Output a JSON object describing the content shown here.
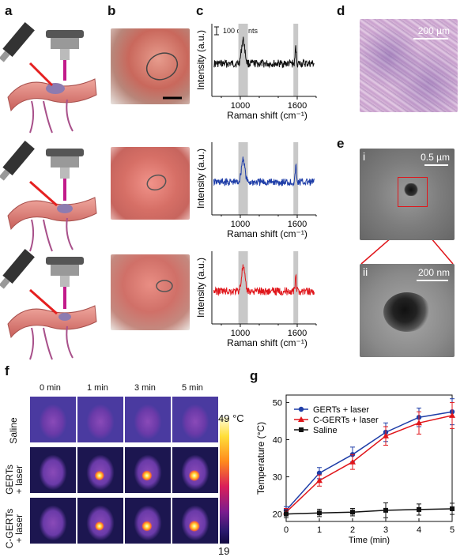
{
  "panels": {
    "a": "a",
    "b": "b",
    "c": "c",
    "d": "d",
    "e": "e",
    "f": "f",
    "g": "g"
  },
  "raman": {
    "scale_label": "100 counts",
    "ylabel": "Intensity (a.u.)",
    "xlabel": "Raman shift (cm⁻¹)",
    "ticks": [
      "1000",
      "1600"
    ],
    "colors": [
      "#111111",
      "#1f3ea8",
      "#e0161b"
    ]
  },
  "histology": {
    "scale_label": "200 µm"
  },
  "tem": {
    "i_label": "i",
    "i_scale": "0.5 µm",
    "ii_label": "ii",
    "ii_scale": "200 nm"
  },
  "thermal": {
    "times": [
      "0 min",
      "1 min",
      "3 min",
      "5 min"
    ],
    "rows": [
      {
        "line1": "Saline",
        "line2": ""
      },
      {
        "line1": "GERTs",
        "line2": "+ laser"
      },
      {
        "line1": "C-GERTs",
        "line2": "+ laser"
      }
    ],
    "scale_max": "49 °C",
    "scale_min": "19"
  },
  "chart_data": {
    "type": "line",
    "xlabel": "Time (min)",
    "ylabel": "Temperature (°C)",
    "xlim": [
      0,
      5
    ],
    "ylim": [
      18,
      52
    ],
    "x_ticks": [
      "0",
      "1",
      "2",
      "3",
      "4",
      "5"
    ],
    "y_ticks": [
      "20",
      "30",
      "40",
      "50"
    ],
    "legend_position": "top-left",
    "x": [
      0,
      1,
      2,
      3,
      4,
      5
    ],
    "series": [
      {
        "name": "GERTs + laser",
        "color": "#1f3ea8",
        "marker": "circle",
        "values": [
          21,
          31,
          36,
          42,
          46,
          47.5
        ],
        "errors": [
          1,
          1.5,
          2,
          2.5,
          2.5,
          3.5
        ]
      },
      {
        "name": "C-GERTs + laser",
        "color": "#e0161b",
        "marker": "triangle",
        "values": [
          20.5,
          29,
          34,
          41,
          44.5,
          46.5
        ],
        "errors": [
          1,
          1.5,
          2,
          2.5,
          3,
          3.5
        ]
      },
      {
        "name": "Saline",
        "color": "#111111",
        "marker": "square",
        "values": [
          20,
          20.3,
          20.5,
          21,
          21.2,
          21.4
        ],
        "errors": [
          1,
          1,
          1,
          2,
          1.5,
          1.5
        ]
      }
    ]
  }
}
